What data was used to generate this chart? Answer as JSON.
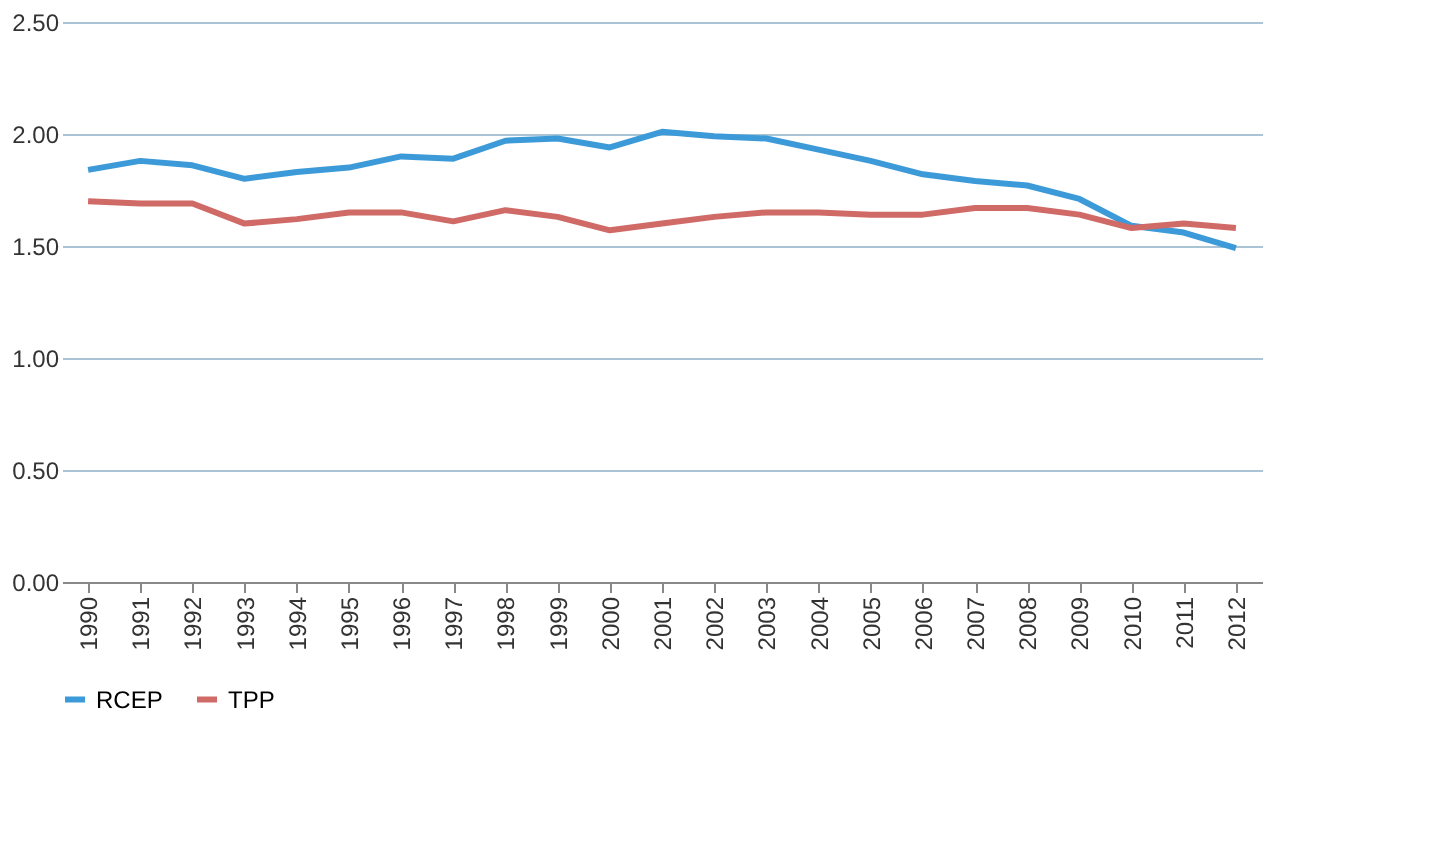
{
  "chart_data": {
    "type": "line",
    "categories": [
      "1990",
      "1991",
      "1992",
      "1993",
      "1994",
      "1995",
      "1996",
      "1997",
      "1998",
      "1999",
      "2000",
      "2001",
      "2002",
      "2003",
      "2004",
      "2005",
      "2006",
      "2007",
      "2008",
      "2009",
      "2010",
      "2011",
      "2012"
    ],
    "series": [
      {
        "name": "RCEP",
        "color": "#3d9ad8",
        "values": [
          1.84,
          1.88,
          1.86,
          1.8,
          1.83,
          1.85,
          1.9,
          1.89,
          1.97,
          1.98,
          1.94,
          2.01,
          1.99,
          1.98,
          1.93,
          1.88,
          1.82,
          1.79,
          1.77,
          1.71,
          1.59,
          1.56,
          1.49
        ]
      },
      {
        "name": "TPP",
        "color": "#d06a66",
        "values": [
          1.7,
          1.69,
          1.69,
          1.6,
          1.62,
          1.65,
          1.65,
          1.61,
          1.66,
          1.63,
          1.57,
          1.6,
          1.63,
          1.65,
          1.65,
          1.64,
          1.64,
          1.67,
          1.67,
          1.64,
          1.58,
          1.6,
          1.58
        ]
      }
    ],
    "ylim": [
      0,
      2.5
    ],
    "yticks": [
      {
        "value": 0,
        "label": "0.00"
      },
      {
        "value": 0.5,
        "label": "0.50"
      },
      {
        "value": 1,
        "label": "1.00"
      },
      {
        "value": 1.5,
        "label": "1.50"
      },
      {
        "value": 2,
        "label": "2.00"
      },
      {
        "value": 2.5,
        "label": "2.50"
      }
    ],
    "grid": "y",
    "legend": "bottom",
    "marker": "none",
    "line_style": "solid"
  }
}
